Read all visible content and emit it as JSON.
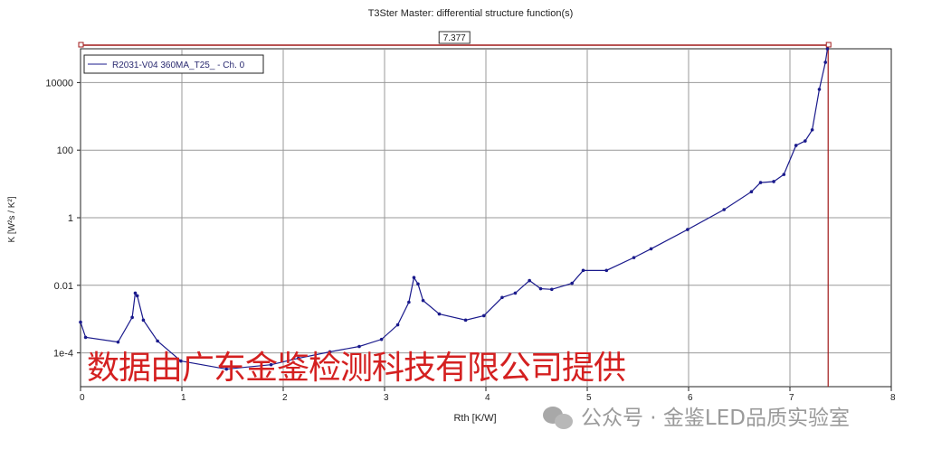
{
  "chart_data": {
    "type": "line",
    "title": "T3Ster Master: differential structure function(s)",
    "xlabel": "Rth  [K/W]",
    "ylabel": "K  [W²s / K²]",
    "xlim": [
      0,
      8
    ],
    "ylim": [
      1e-05,
      100000.0
    ],
    "yscale": "log",
    "grid": true,
    "legend": "top-left",
    "x_ticks": [
      "0",
      "1",
      "2",
      "3",
      "4",
      "5",
      "6",
      "7",
      "8"
    ],
    "y_ticks": [
      {
        "v": 0.0001,
        "label": "1e-4"
      },
      {
        "v": 0.01,
        "label": "0.01"
      },
      {
        "v": 1,
        "label": "1"
      },
      {
        "v": 100,
        "label": "100"
      },
      {
        "v": 10000,
        "label": "10000"
      }
    ],
    "cursor": {
      "value": 7.377,
      "label": "7.377",
      "color": "#a01818"
    },
    "series": [
      {
        "name": "R2031-V04 360MA_T25_ - Ch. 0",
        "color": "#1a1a8c",
        "x": [
          0,
          0.05,
          0.37,
          0.51,
          0.54,
          0.56,
          0.62,
          0.76,
          0.99,
          1.44,
          1.88,
          2.15,
          2.46,
          2.75,
          2.97,
          3.13,
          3.24,
          3.29,
          3.33,
          3.38,
          3.54,
          3.8,
          3.98,
          4.16,
          4.29,
          4.43,
          4.54,
          4.65,
          4.85,
          4.96,
          5.19,
          5.46,
          5.63,
          5.99,
          6.35,
          6.62,
          6.71,
          6.84,
          6.94,
          7.06,
          7.15,
          7.22,
          7.29,
          7.35,
          7.37
        ],
        "log10_y": [
          -3.09,
          -3.54,
          -3.68,
          -2.95,
          -2.23,
          -2.31,
          -3.03,
          -3.65,
          -4.24,
          -4.48,
          -4.35,
          -4.16,
          -3.97,
          -3.81,
          -3.6,
          -3.17,
          -2.5,
          -1.77,
          -1.96,
          -2.45,
          -2.85,
          -3.03,
          -2.9,
          -2.36,
          -2.23,
          -1.86,
          -2.1,
          -2.12,
          -1.94,
          -1.56,
          -1.56,
          -1.18,
          -0.92,
          -0.35,
          0.24,
          0.77,
          1.04,
          1.07,
          1.28,
          2.14,
          2.27,
          2.6,
          3.8,
          4.6,
          5.0
        ]
      }
    ]
  },
  "watermarks": {
    "red": "数据由广东金鉴检测科技有限公司提供",
    "gray": "公众号 · 金鉴LED品质实验室"
  }
}
